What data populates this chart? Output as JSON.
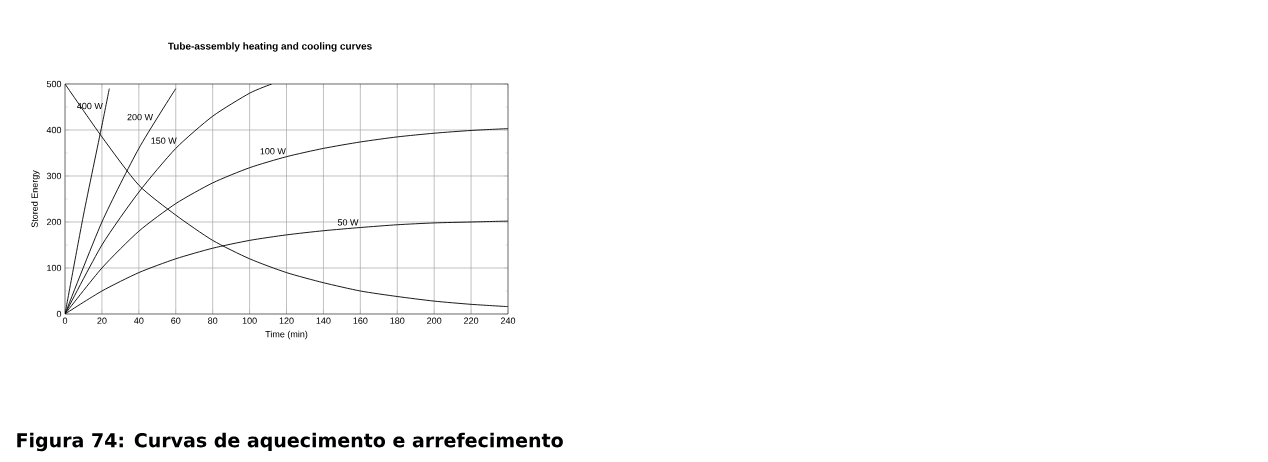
{
  "chart_data": {
    "type": "line",
    "title": "Tube-assembly heating and cooling curves",
    "xlabel": "Time (min)",
    "ylabel": "Stored Energy",
    "annotations": [
      "Figura 74: Curvas de aquecimento e arrefecimento"
    ],
    "xlim": [
      0,
      240
    ],
    "ylim": [
      0,
      500
    ],
    "xticks": [
      0,
      20,
      40,
      60,
      80,
      100,
      120,
      140,
      160,
      180,
      200,
      220,
      240
    ],
    "yticks": [
      0,
      100,
      200,
      300,
      400,
      500
    ],
    "grid": true,
    "series": [
      {
        "name": "400 W",
        "color": "#000000",
        "x": [
          0,
          10,
          20,
          24
        ],
        "values": [
          0,
          215,
          410,
          490
        ]
      },
      {
        "name": "200 W",
        "color": "#000000",
        "x": [
          0,
          20,
          40,
          60
        ],
        "values": [
          0,
          200,
          360,
          490
        ]
      },
      {
        "name": "150 W",
        "color": "#000000",
        "x": [
          0,
          20,
          40,
          60,
          80,
          100,
          112
        ],
        "values": [
          0,
          150,
          265,
          360,
          430,
          480,
          500
        ]
      },
      {
        "name": "100 W",
        "color": "#000000",
        "x": [
          0,
          20,
          40,
          60,
          80,
          100,
          120,
          140,
          160,
          180,
          200,
          220,
          240
        ],
        "values": [
          0,
          100,
          180,
          240,
          285,
          318,
          342,
          360,
          374,
          385,
          393,
          399,
          403
        ]
      },
      {
        "name": "50 W",
        "color": "#000000",
        "x": [
          0,
          20,
          40,
          60,
          80,
          100,
          120,
          140,
          160,
          180,
          200,
          220,
          240
        ],
        "values": [
          0,
          50,
          90,
          120,
          143,
          160,
          172,
          181,
          188,
          194,
          198,
          200,
          202
        ]
      },
      {
        "color": "#000000",
        "x": [
          0,
          20,
          40,
          60,
          80,
          100,
          120,
          140,
          160,
          180,
          200,
          220,
          240
        ],
        "values": [
          500,
          385,
          280,
          215,
          160,
          120,
          90,
          68,
          50,
          38,
          28,
          21,
          16
        ]
      }
    ]
  }
}
